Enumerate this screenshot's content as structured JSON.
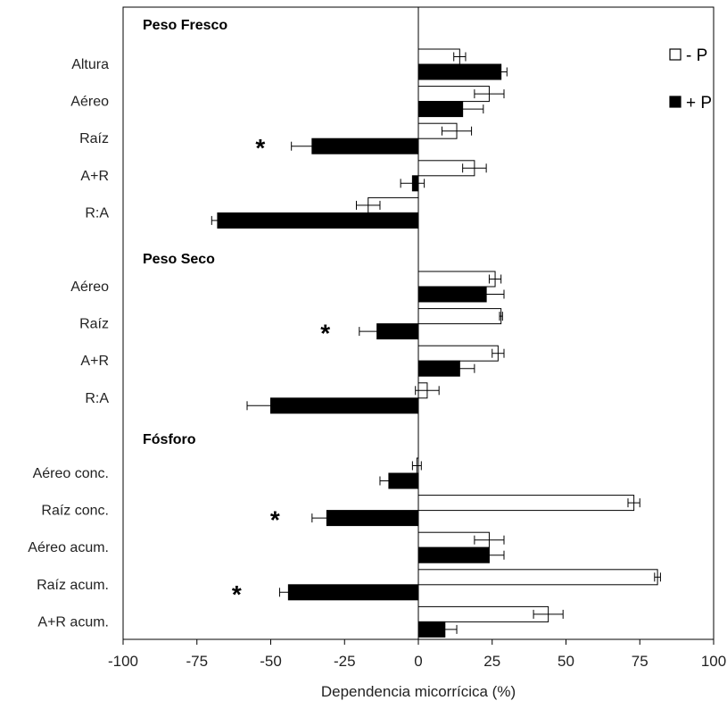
{
  "chart_data": {
    "type": "bar",
    "orientation": "horizontal",
    "xlabel": "Dependencia micorrícica (%)",
    "xlim": [
      -100,
      100
    ],
    "xticks": [
      "-100",
      "-75",
      "-50",
      "-25",
      "0",
      "25",
      "50",
      "75",
      "100"
    ],
    "legend_position": "top-right",
    "series_names": [
      "- P",
      "+ P"
    ],
    "colors": {
      "minusP": "#ffffff",
      "plusP": "#000000",
      "edge": "#000000"
    },
    "groups": [
      {
        "title": "Peso Fresco",
        "items": [
          {
            "label": "Altura",
            "minusP": 14,
            "minusP_err": 2,
            "plusP": 28,
            "plusP_err": 2,
            "star": ""
          },
          {
            "label": "Aéreo",
            "minusP": 24,
            "minusP_err": 5,
            "plusP": 15,
            "plusP_err": 7,
            "star": ""
          },
          {
            "label": "Raíz",
            "minusP": 13,
            "minusP_err": 5,
            "plusP": -36,
            "plusP_err": 7,
            "star": "*"
          },
          {
            "label": "A+R",
            "minusP": 19,
            "minusP_err": 4,
            "plusP": -2,
            "plusP_err": 4,
            "star": ""
          },
          {
            "label": "R:A",
            "minusP": -17,
            "minusP_err": 4,
            "plusP": -68,
            "plusP_err": 2,
            "star": ""
          }
        ]
      },
      {
        "title": "Peso Seco",
        "items": [
          {
            "label": "Aéreo",
            "minusP": 26,
            "minusP_err": 2,
            "plusP": 23,
            "plusP_err": 6,
            "star": ""
          },
          {
            "label": "Raíz",
            "minusP": 28,
            "minusP_err": 0.5,
            "plusP": -14,
            "plusP_err": 6,
            "star": "*"
          },
          {
            "label": "A+R",
            "minusP": 27,
            "minusP_err": 2,
            "plusP": 14,
            "plusP_err": 5,
            "star": ""
          },
          {
            "label": "R:A",
            "minusP": 3,
            "minusP_err": 4,
            "plusP": -50,
            "plusP_err": 8,
            "star": ""
          }
        ]
      },
      {
        "title": "Fósforo",
        "items": [
          {
            "label": "Aéreo conc.",
            "minusP": -0.5,
            "minusP_err": 1.5,
            "plusP": -10,
            "plusP_err": 3,
            "star": ""
          },
          {
            "label": "Raíz conc.",
            "minusP": 73,
            "minusP_err": 2,
            "plusP": -31,
            "plusP_err": 5,
            "star": "*"
          },
          {
            "label": "Aéreo acum.",
            "minusP": 24,
            "minusP_err": 5,
            "plusP": 24,
            "plusP_err": 5,
            "star": ""
          },
          {
            "label": "Raíz acum.",
            "minusP": 81,
            "minusP_err": 1,
            "plusP": -44,
            "plusP_err": 3,
            "star": "*"
          },
          {
            "label": "A+R acum.",
            "minusP": 44,
            "minusP_err": 5,
            "plusP": 9,
            "plusP_err": 4,
            "star": ""
          }
        ]
      }
    ]
  }
}
